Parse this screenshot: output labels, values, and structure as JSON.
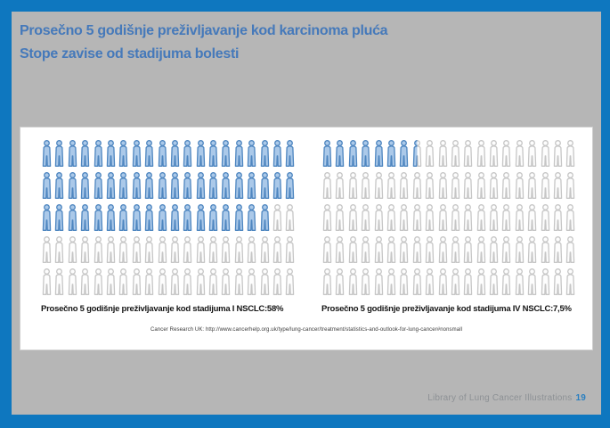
{
  "slide": {
    "title_line1": "Prosečno 5 godišnje preživljavanje kod karcinoma pluća",
    "title_line2": "Stope zavise od stadijuma bolesti",
    "source": "Cancer Research UK: http://www.cancerhelp.org.uk/type/lung-cancer/treatment/statistics-and-outlook-for-lung-cancer#nonsmall",
    "footer_label": "Library of Lung Cancer Illustrations",
    "footer_page": "19"
  },
  "colors": {
    "frame_blue": "#0e77bf",
    "slide_gray": "#b6b6b6",
    "title_blue": "#4579ba",
    "panel_white": "#ffffff",
    "footer_gray": "#8d9195",
    "footer_page_blue": "#2a7fc0",
    "icon_filled_fill": "#abc9e9",
    "icon_filled_stroke": "#4e86c0",
    "icon_empty_fill": "#fdfdfd",
    "icon_empty_stroke": "#c6c6c6"
  },
  "chart_data": {
    "type": "pictograph",
    "description": "Unit chart: two grids of 100 person icons (5 rows x 20 columns), each icon = 1% of patients; filled blue icons show the 5-year survival rate",
    "icons_per_group": 100,
    "columns": 20,
    "rows": 5,
    "unit": "1 icon = 1 percent",
    "groups": [
      {
        "label": "Prosečno 5 godišnje preživljavanje kod stadijuma I NSCLC:58%",
        "stage": "I NSCLC",
        "value_percent": 58,
        "filled_icons": 58
      },
      {
        "label": "Prosečno 5 godišnje preživljavanje kod stadijuma IV NSCLC:7,5%",
        "stage": "IV NSCLC",
        "value_percent": 7.5,
        "filled_icons": 7.5
      }
    ]
  }
}
